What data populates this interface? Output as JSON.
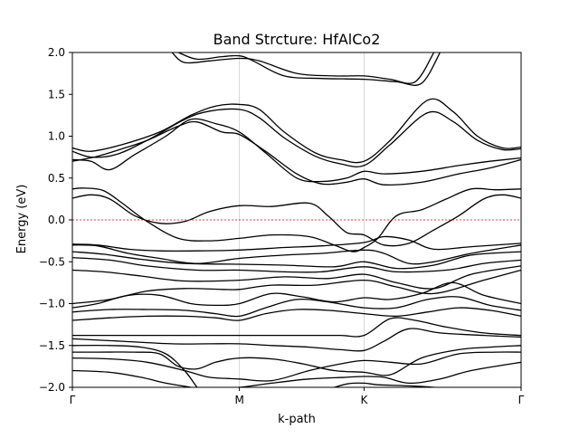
{
  "chart_data": {
    "type": "line",
    "title": "Band Strcture: HfAlCo2",
    "xlabel": "k-path",
    "ylabel": "Energy (eV)",
    "xlim": [
      0,
      3.6
    ],
    "ylim": [
      -2.0,
      2.0
    ],
    "x_ticks": [
      {
        "x": 0,
        "label": "Γ"
      },
      {
        "x": 1.34,
        "label": "M"
      },
      {
        "x": 2.34,
        "label": "K"
      },
      {
        "x": 3.6,
        "label": "Γ"
      }
    ],
    "y_ticks": [
      {
        "y": -2.0,
        "label": "−2.0"
      },
      {
        "y": -1.5,
        "label": "−1.5"
      },
      {
        "y": -1.0,
        "label": "−1.0"
      },
      {
        "y": -0.5,
        "label": "−0.5"
      },
      {
        "y": 0.0,
        "label": "0.0"
      },
      {
        "y": 0.5,
        "label": "0.5"
      },
      {
        "y": 1.0,
        "label": "1.0"
      },
      {
        "y": 1.5,
        "label": "1.5"
      },
      {
        "y": 2.0,
        "label": "2.0"
      }
    ],
    "fermi_level": 0.0,
    "colors": {
      "bands": "#000000",
      "fermi": "#e00000",
      "kline": "#cccccc"
    },
    "x_grid": "vertical lines at high-symmetry points",
    "series": [
      {
        "x": [
          0.8,
          0.9,
          1.1,
          1.34,
          1.5,
          1.8,
          2.1,
          2.34,
          2.55,
          2.75,
          2.9
        ],
        "values": [
          2.0,
          1.88,
          1.9,
          1.93,
          1.9,
          1.75,
          1.72,
          1.72,
          1.68,
          1.65,
          2.0
        ]
      },
      {
        "x": [
          0.85,
          1.0,
          1.2,
          1.34,
          1.45,
          1.7,
          2.0,
          2.34,
          2.6,
          2.8,
          2.95
        ],
        "values": [
          2.0,
          1.92,
          1.95,
          1.96,
          1.9,
          1.72,
          1.69,
          1.68,
          1.65,
          1.63,
          2.0
        ]
      },
      {
        "x": [
          0,
          0.15,
          0.4,
          0.7,
          0.95,
          1.15,
          1.34,
          1.5,
          1.7,
          1.95,
          2.15,
          2.34,
          2.55,
          2.85,
          3.05,
          3.25,
          3.45,
          3.6
        ],
        "values": [
          0.86,
          0.82,
          0.9,
          1.05,
          1.25,
          1.36,
          1.38,
          1.32,
          1.05,
          0.8,
          0.72,
          0.7,
          0.95,
          1.43,
          1.3,
          1.0,
          0.86,
          0.87
        ]
      },
      {
        "x": [
          0,
          0.15,
          0.35,
          0.6,
          0.9,
          1.1,
          1.34,
          1.5,
          1.7,
          1.95,
          2.15,
          2.34,
          2.55,
          2.85,
          3.05,
          3.25,
          3.45,
          3.6
        ],
        "values": [
          0.82,
          0.75,
          0.78,
          0.95,
          1.2,
          1.3,
          1.32,
          1.22,
          0.98,
          0.76,
          0.67,
          0.65,
          0.9,
          1.28,
          1.18,
          0.95,
          0.84,
          0.85
        ]
      },
      {
        "x": [
          0,
          0.15,
          0.3,
          0.5,
          0.75,
          0.95,
          1.15,
          1.34,
          1.55,
          1.8,
          2.0,
          2.2,
          2.34,
          2.5,
          2.8,
          3.1,
          3.35,
          3.6
        ],
        "values": [
          0.72,
          0.7,
          0.6,
          0.78,
          1.0,
          1.2,
          1.15,
          1.05,
          0.8,
          0.5,
          0.46,
          0.5,
          0.58,
          0.55,
          0.58,
          0.65,
          0.7,
          0.74
        ]
      },
      {
        "x": [
          0,
          0.2,
          0.4,
          0.6,
          0.85,
          1.0,
          1.2,
          1.34,
          1.55,
          1.8,
          2.0,
          2.2,
          2.34,
          2.5,
          2.8,
          3.1,
          3.35,
          3.6
        ],
        "values": [
          0.7,
          0.76,
          0.85,
          0.95,
          1.12,
          1.17,
          1.05,
          1.02,
          0.82,
          0.55,
          0.43,
          0.45,
          0.49,
          0.42,
          0.45,
          0.55,
          0.62,
          0.72
        ]
      },
      {
        "x": [
          0,
          0.1,
          0.25,
          0.4,
          0.6,
          0.85,
          1.1,
          1.34,
          1.6,
          1.9,
          2.1,
          2.25,
          2.34,
          2.45,
          2.6,
          2.8,
          3.0,
          3.2,
          3.4,
          3.6
        ],
        "values": [
          0.37,
          0.38,
          0.35,
          0.2,
          -0.02,
          -0.22,
          -0.25,
          -0.22,
          -0.18,
          -0.2,
          -0.3,
          -0.38,
          -0.33,
          -0.22,
          0.05,
          0.12,
          0.25,
          0.37,
          0.36,
          0.37
        ]
      },
      {
        "x": [
          0,
          0.15,
          0.3,
          0.5,
          0.7,
          0.9,
          1.1,
          1.34,
          1.6,
          1.9,
          2.05,
          2.2,
          2.34,
          2.5,
          2.7,
          2.9,
          3.1,
          3.3,
          3.45,
          3.6
        ],
        "values": [
          0.26,
          0.3,
          0.25,
          0.05,
          -0.04,
          -0.02,
          0.1,
          0.17,
          0.16,
          0.2,
          0.05,
          -0.15,
          -0.18,
          -0.3,
          -0.28,
          -0.12,
          0.05,
          0.25,
          0.3,
          0.26
        ]
      },
      {
        "x": [
          0,
          0.2,
          0.45,
          0.7,
          1.0,
          1.34,
          1.7,
          2.0,
          2.34,
          2.5,
          2.7,
          2.9,
          3.2,
          3.6
        ],
        "values": [
          -0.29,
          -0.3,
          -0.35,
          -0.37,
          -0.37,
          -0.36,
          -0.33,
          -0.31,
          -0.27,
          -0.2,
          -0.24,
          -0.35,
          -0.32,
          -0.28
        ]
      },
      {
        "x": [
          0,
          0.2,
          0.45,
          0.7,
          1.0,
          1.34,
          1.7,
          2.0,
          2.34,
          2.5,
          2.7,
          2.9,
          3.2,
          3.6
        ],
        "values": [
          -0.3,
          -0.31,
          -0.4,
          -0.46,
          -0.52,
          -0.46,
          -0.42,
          -0.4,
          -0.36,
          -0.4,
          -0.52,
          -0.5,
          -0.4,
          -0.3
        ]
      },
      {
        "x": [
          0,
          0.25,
          0.55,
          0.9,
          1.34,
          1.7,
          2.1,
          2.34,
          2.6,
          2.9,
          3.2,
          3.6
        ],
        "values": [
          -0.38,
          -0.41,
          -0.47,
          -0.52,
          -0.53,
          -0.54,
          -0.56,
          -0.5,
          -0.58,
          -0.54,
          -0.42,
          -0.38
        ]
      },
      {
        "x": [
          0,
          0.3,
          0.6,
          1.0,
          1.34,
          1.7,
          2.0,
          2.34,
          2.6,
          3.0,
          3.3,
          3.6
        ],
        "values": [
          -0.45,
          -0.48,
          -0.55,
          -0.6,
          -0.6,
          -0.62,
          -0.62,
          -0.56,
          -0.62,
          -0.6,
          -0.52,
          -0.48
        ]
      },
      {
        "x": [
          0,
          0.25,
          0.55,
          0.9,
          1.34,
          1.7,
          2.05,
          2.34,
          2.6,
          2.9,
          3.2,
          3.6
        ],
        "values": [
          -0.6,
          -0.62,
          -0.67,
          -0.73,
          -0.72,
          -0.68,
          -0.7,
          -0.65,
          -0.75,
          -0.82,
          -0.65,
          -0.55
        ]
      },
      {
        "x": [
          0,
          0.3,
          0.6,
          0.9,
          1.2,
          1.34,
          1.6,
          1.95,
          2.34,
          2.6,
          2.9,
          3.3,
          3.6
        ],
        "values": [
          -1.0,
          -0.95,
          -0.85,
          -0.82,
          -0.83,
          -0.83,
          -0.78,
          -0.78,
          -0.72,
          -0.8,
          -0.88,
          -0.72,
          -0.6
        ]
      },
      {
        "x": [
          0,
          0.2,
          0.45,
          0.7,
          0.95,
          1.15,
          1.34,
          1.6,
          1.85,
          2.1,
          2.34,
          2.55,
          2.8,
          3.05,
          3.3,
          3.6
        ],
        "values": [
          -1.05,
          -1.0,
          -0.9,
          -0.9,
          -1.0,
          -1.02,
          -1.0,
          -0.88,
          -0.92,
          -0.98,
          -0.93,
          -0.95,
          -0.88,
          -0.75,
          -0.9,
          -1.0
        ]
      },
      {
        "x": [
          0,
          0.3,
          0.6,
          0.9,
          1.15,
          1.34,
          1.55,
          1.8,
          2.05,
          2.34,
          2.6,
          2.85,
          3.1,
          3.35,
          3.6
        ],
        "values": [
          -1.1,
          -1.07,
          -1.07,
          -1.08,
          -1.12,
          -1.15,
          -1.05,
          -0.95,
          -0.98,
          -1.05,
          -1.05,
          -0.95,
          -0.92,
          -1.02,
          -1.08
        ]
      },
      {
        "x": [
          0,
          0.3,
          0.6,
          0.9,
          1.15,
          1.34,
          1.55,
          1.8,
          2.05,
          2.34,
          2.6,
          2.85,
          3.1,
          3.35,
          3.6
        ],
        "values": [
          -1.2,
          -1.17,
          -1.15,
          -1.15,
          -1.17,
          -1.2,
          -1.12,
          -1.07,
          -1.08,
          -1.12,
          -1.15,
          -1.1,
          -1.05,
          -1.08,
          -1.15
        ]
      },
      {
        "x": [
          0,
          0.4,
          0.8,
          1.1,
          1.34,
          1.6,
          1.9,
          2.15,
          2.34,
          2.55,
          2.75,
          3.0,
          3.3,
          3.6
        ],
        "values": [
          -1.38,
          -1.38,
          -1.38,
          -1.38,
          -1.38,
          -1.38,
          -1.38,
          -1.38,
          -1.38,
          -1.18,
          -1.2,
          -1.28,
          -1.35,
          -1.38
        ]
      },
      {
        "x": [
          0,
          0.4,
          0.8,
          1.1,
          1.34,
          1.6,
          1.9,
          2.15,
          2.34,
          2.5,
          2.7,
          2.95,
          3.3,
          3.6
        ],
        "values": [
          -1.42,
          -1.45,
          -1.48,
          -1.48,
          -1.48,
          -1.5,
          -1.52,
          -1.55,
          -1.56,
          -1.45,
          -1.3,
          -1.35,
          -1.38,
          -1.4
        ]
      },
      {
        "x": [
          0,
          0.3,
          0.55,
          0.75,
          0.9,
          1.0,
          1.1
        ],
        "values": [
          -1.5,
          -1.5,
          -1.52,
          -1.6,
          -1.8,
          -2.0,
          -2.2
        ]
      },
      {
        "x": [
          0,
          0.2,
          0.5,
          0.7,
          0.85,
          1.0,
          1.15,
          1.34,
          1.6,
          1.85,
          2.1,
          2.34,
          2.55,
          2.8,
          3.1,
          3.35,
          3.6
        ],
        "values": [
          -1.58,
          -1.58,
          -1.58,
          -1.6,
          -1.75,
          -1.78,
          -1.7,
          -1.65,
          -1.66,
          -1.72,
          -1.8,
          -1.82,
          -1.85,
          -1.65,
          -1.55,
          -1.52,
          -1.5
        ]
      },
      {
        "x": [
          0,
          0.3,
          0.6,
          0.9,
          1.1,
          1.34,
          1.6,
          1.9,
          2.15,
          2.34,
          2.55,
          2.8,
          3.1,
          3.4,
          3.6
        ],
        "values": [
          -1.65,
          -1.66,
          -1.7,
          -1.8,
          -1.88,
          -1.9,
          -1.92,
          -1.8,
          -1.72,
          -1.68,
          -1.7,
          -1.72,
          -1.6,
          -1.58,
          -1.58
        ]
      },
      {
        "x": [
          0,
          0.3,
          0.55,
          0.75,
          0.95,
          1.1
        ],
        "values": [
          -1.8,
          -1.82,
          -1.88,
          -1.95,
          -2.0,
          -2.05
        ]
      },
      {
        "x": [
          1.05,
          1.34,
          1.6,
          1.9,
          2.2,
          2.34,
          2.5,
          2.7,
          2.95,
          3.2,
          3.6
        ],
        "values": [
          -2.02,
          -2.0,
          -1.95,
          -1.9,
          -1.88,
          -1.87,
          -1.88,
          -1.95,
          -1.9,
          -1.8,
          -1.7
        ]
      },
      {
        "x": [
          2.0,
          2.2,
          2.34,
          2.45,
          2.65,
          2.9,
          3.1
        ],
        "values": [
          -2.05,
          -1.96,
          -1.95,
          -1.97,
          -1.98,
          -2.0,
          -2.05
        ]
      }
    ]
  }
}
